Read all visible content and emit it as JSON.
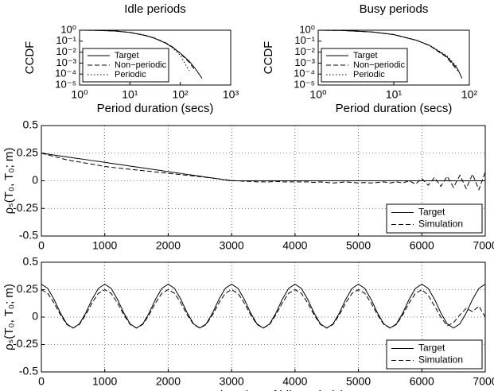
{
  "chart_data": [
    {
      "type": "line",
      "title": "Idle periods",
      "ylabel": "CCDF",
      "xlabel": "Period duration (secs)",
      "xlog": true,
      "ylog": true,
      "grid": false,
      "legend": "lower left",
      "xlim": [
        1,
        1000
      ],
      "ylim": [
        1e-05,
        1
      ],
      "xticks": [
        {
          "value": 1,
          "label": "10⁰"
        },
        {
          "value": 10,
          "label": "10¹"
        },
        {
          "value": 100,
          "label": "10²"
        },
        {
          "value": 1000,
          "label": "10³"
        }
      ],
      "yticks": [
        {
          "value": 1,
          "label": "10⁰"
        },
        {
          "value": 0.1,
          "label": "10⁻¹"
        },
        {
          "value": 0.01,
          "label": "10⁻²"
        },
        {
          "value": 0.001,
          "label": "10⁻³"
        },
        {
          "value": 0.0001,
          "label": "10⁻⁴"
        },
        {
          "value": 1e-05,
          "label": "10⁻⁵"
        }
      ],
      "x": [
        1,
        2,
        5,
        10,
        20,
        30,
        50,
        70,
        100,
        150,
        200,
        270
      ],
      "series": [
        {
          "name": "Target",
          "color": "#000000",
          "dash": "solid",
          "values": [
            1,
            0.98,
            0.85,
            0.62,
            0.33,
            0.19,
            0.07,
            0.028,
            0.008,
            0.0015,
            0.0003,
            4e-05
          ]
        },
        {
          "name": "Non−periodic",
          "color": "#000000",
          "dash": "dashed",
          "values": [
            1,
            0.98,
            0.85,
            0.63,
            0.34,
            0.2,
            0.075,
            0.03,
            0.0075,
            0.0012,
            0.0002,
            null
          ]
        },
        {
          "name": "Periodic",
          "color": "#000000",
          "dash": "dotted",
          "values": [
            1,
            0.98,
            0.86,
            0.64,
            0.35,
            0.2,
            0.07,
            0.025,
            0.005,
            0.0002,
            null,
            null
          ]
        }
      ]
    },
    {
      "type": "line",
      "title": "Busy periods",
      "ylabel": "CCDF",
      "xlabel": "Period duration (secs)",
      "xlog": true,
      "ylog": true,
      "grid": false,
      "legend": "lower left",
      "xlim": [
        1,
        100
      ],
      "ylim": [
        1e-05,
        1
      ],
      "xticks": [
        {
          "value": 1,
          "label": "10⁰"
        },
        {
          "value": 10,
          "label": "10¹"
        },
        {
          "value": 100,
          "label": "10²"
        }
      ],
      "yticks": [
        {
          "value": 1,
          "label": "10⁰"
        },
        {
          "value": 0.1,
          "label": "10⁻¹"
        },
        {
          "value": 0.01,
          "label": "10⁻²"
        },
        {
          "value": 0.001,
          "label": "10⁻³"
        },
        {
          "value": 0.0001,
          "label": "10⁻⁴"
        },
        {
          "value": 1e-05,
          "label": "10⁻⁵"
        }
      ],
      "x": [
        1,
        2,
        5,
        10,
        20,
        30,
        50,
        70,
        80
      ],
      "series": [
        {
          "name": "Target",
          "color": "#000000",
          "dash": "solid",
          "values": [
            1,
            0.95,
            0.7,
            0.4,
            0.12,
            0.04,
            0.004,
            0.0003,
            4e-05
          ]
        },
        {
          "name": "Non−periodic",
          "color": "#000000",
          "dash": "dashed",
          "values": [
            1,
            0.95,
            0.7,
            0.4,
            0.12,
            0.038,
            0.0035,
            0.0002,
            null
          ]
        },
        {
          "name": "Periodic",
          "color": "#000000",
          "dash": "dotted",
          "values": [
            1,
            0.95,
            0.71,
            0.41,
            0.12,
            0.04,
            0.005,
            0.0004,
            null
          ]
        }
      ]
    },
    {
      "type": "line",
      "ylabel": "ρₛ(T₀, T₀; m)",
      "grid": true,
      "legend": "lower right",
      "xlim": [
        0,
        7000
      ],
      "ylim": [
        -0.5,
        0.5
      ],
      "xticks": [
        0,
        1000,
        2000,
        3000,
        4000,
        5000,
        6000,
        7000
      ],
      "yticks": [
        -0.5,
        -0.25,
        0,
        0.25,
        0.5
      ],
      "x": [
        0,
        100,
        200,
        300,
        400,
        500,
        600,
        700,
        800,
        900,
        1000,
        1100,
        1200,
        1300,
        1400,
        1500,
        1600,
        1700,
        1800,
        1900,
        2000,
        2100,
        2200,
        2300,
        2400,
        2500,
        2600,
        2700,
        2800,
        2900,
        3000,
        3100,
        3200,
        3300,
        3400,
        3500,
        3600,
        3700,
        3800,
        3900,
        4000,
        4100,
        4200,
        4300,
        4400,
        4500,
        4600,
        4700,
        4800,
        4900,
        5000,
        5100,
        5200,
        5300,
        5400,
        5500,
        5600,
        5700,
        5800,
        5900,
        6000,
        6100,
        6200,
        6300,
        6400,
        6500,
        6600,
        6700,
        6800,
        6900,
        7000
      ],
      "series": [
        {
          "name": "Target",
          "color": "#000000",
          "dash": "solid",
          "values": [
            0.25,
            0.242,
            0.233,
            0.225,
            0.217,
            0.208,
            0.2,
            0.192,
            0.183,
            0.175,
            0.167,
            0.158,
            0.15,
            0.142,
            0.133,
            0.125,
            0.117,
            0.108,
            0.1,
            0.092,
            0.083,
            0.075,
            0.067,
            0.058,
            0.05,
            0.042,
            0.033,
            0.025,
            0.017,
            0.008,
            0,
            0,
            0,
            0,
            0,
            0,
            0,
            0,
            0,
            0,
            0,
            0,
            0,
            0,
            0,
            0,
            0,
            0,
            0,
            0,
            0,
            0,
            0,
            0,
            0,
            0,
            0,
            0,
            0,
            0,
            0,
            0,
            0,
            0,
            0,
            0,
            0,
            0,
            0,
            0,
            0
          ]
        },
        {
          "name": "Simulation",
          "color": "#000000",
          "dash": "dashed",
          "values": [
            0.25,
            0.235,
            0.22,
            0.205,
            0.19,
            0.18,
            0.17,
            0.16,
            0.15,
            0.14,
            0.13,
            0.123,
            0.116,
            0.11,
            0.104,
            0.098,
            0.092,
            0.086,
            0.08,
            0.074,
            0.068,
            0.062,
            0.056,
            0.05,
            0.044,
            0.038,
            0.031,
            0.024,
            0.017,
            0.01,
            0.003,
            0,
            -0.005,
            -0.005,
            -0.01,
            -0.01,
            -0.01,
            -0.005,
            -0.01,
            -0.01,
            -0.01,
            -0.01,
            -0.01,
            -0.015,
            -0.01,
            -0.015,
            -0.02,
            -0.015,
            -0.01,
            -0.015,
            -0.02,
            -0.015,
            -0.02,
            -0.015,
            -0.01,
            -0.02,
            -0.01,
            -0.02,
            0,
            -0.03,
            0.02,
            -0.04,
            0.03,
            -0.05,
            0.04,
            -0.06,
            0.05,
            -0.07,
            0.06,
            -0.08,
            0.08
          ]
        }
      ]
    },
    {
      "type": "line",
      "ylabel": "ρₛ(T₀, T₀; m)",
      "xlabel": "Lag m (number of idle periods)",
      "grid": true,
      "legend": "lower right",
      "xlim": [
        0,
        7000
      ],
      "ylim": [
        -0.5,
        0.5
      ],
      "xticks": [
        0,
        1000,
        2000,
        3000,
        4000,
        5000,
        6000,
        7000
      ],
      "yticks": [
        -0.5,
        -0.25,
        0,
        0.25,
        0.5
      ],
      "x": [
        0,
        100,
        200,
        300,
        400,
        500,
        600,
        700,
        800,
        900,
        1000,
        1100,
        1200,
        1300,
        1400,
        1500,
        1600,
        1700,
        1800,
        1900,
        2000,
        2100,
        2200,
        2300,
        2400,
        2500,
        2600,
        2700,
        2800,
        2900,
        3000,
        3100,
        3200,
        3300,
        3400,
        3500,
        3600,
        3700,
        3800,
        3900,
        4000,
        4100,
        4200,
        4300,
        4400,
        4500,
        4600,
        4700,
        4800,
        4900,
        5000,
        5100,
        5200,
        5300,
        5400,
        5500,
        5600,
        5700,
        5800,
        5900,
        6000,
        6100,
        6200,
        6300,
        6400,
        6500,
        6600,
        6700,
        6800,
        6900,
        7000
      ],
      "series": [
        {
          "name": "Target",
          "color": "#000000",
          "dash": "solid",
          "values": [
            0.3,
            0.262,
            0.162,
            0.038,
            -0.062,
            -0.1,
            -0.062,
            0.038,
            0.162,
            0.262,
            0.3,
            0.262,
            0.162,
            0.038,
            -0.062,
            -0.1,
            -0.062,
            0.038,
            0.162,
            0.262,
            0.3,
            0.262,
            0.162,
            0.038,
            -0.062,
            -0.1,
            -0.062,
            0.038,
            0.162,
            0.262,
            0.3,
            0.262,
            0.162,
            0.038,
            -0.062,
            -0.1,
            -0.062,
            0.038,
            0.162,
            0.262,
            0.3,
            0.262,
            0.162,
            0.038,
            -0.062,
            -0.1,
            -0.062,
            0.038,
            0.162,
            0.262,
            0.3,
            0.262,
            0.162,
            0.038,
            -0.062,
            -0.1,
            -0.062,
            0.038,
            0.162,
            0.262,
            0.3,
            0.262,
            0.162,
            0.038,
            -0.062,
            -0.1,
            -0.062,
            0.038,
            0.162,
            0.262,
            0.3
          ]
        },
        {
          "name": "Simulation",
          "color": "#000000",
          "dash": "dashed",
          "values": [
            0.25,
            0.217,
            0.129,
            0.021,
            -0.067,
            -0.1,
            -0.067,
            0.021,
            0.129,
            0.217,
            0.25,
            0.217,
            0.129,
            0.021,
            -0.067,
            -0.1,
            -0.067,
            0.021,
            0.129,
            0.217,
            0.25,
            0.217,
            0.129,
            0.021,
            -0.067,
            -0.1,
            -0.067,
            0.021,
            0.129,
            0.217,
            0.25,
            0.217,
            0.129,
            0.021,
            -0.067,
            -0.1,
            -0.067,
            0.021,
            0.129,
            0.217,
            0.25,
            0.217,
            0.129,
            0.021,
            -0.067,
            -0.1,
            -0.067,
            0.021,
            0.129,
            0.217,
            0.25,
            0.217,
            0.129,
            0.021,
            -0.067,
            -0.1,
            -0.067,
            0.021,
            0.129,
            0.217,
            0.25,
            0.2,
            0.1,
            0,
            -0.08,
            -0.05,
            0.02,
            0.08,
            0.05,
            0.1,
            0
          ]
        }
      ]
    }
  ]
}
